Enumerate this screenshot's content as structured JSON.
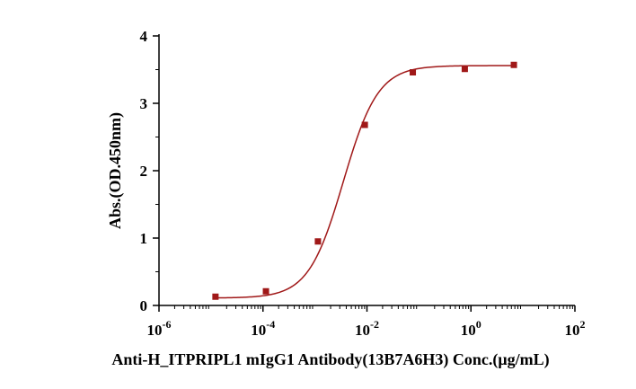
{
  "chart_data": {
    "type": "scatter",
    "title": "",
    "xlabel": "Anti-H_ITPRIPL1 mIgG1 Antibody(13B7A6H3)  Conc.(μg/mL)",
    "ylabel": "Abs.(OD.450nm)",
    "x_scale": "log",
    "xlim": [
      1e-06,
      100
    ],
    "ylim": [
      0,
      4
    ],
    "x_ticks": [
      {
        "base": "10",
        "exp": "-6"
      },
      {
        "base": "10",
        "exp": "-4"
      },
      {
        "base": "10",
        "exp": "-2"
      },
      {
        "base": "10",
        "exp": "0"
      },
      {
        "base": "10",
        "exp": "2"
      }
    ],
    "y_ticks": [
      "0",
      "1",
      "2",
      "3",
      "4"
    ],
    "grid": false,
    "legend": "none",
    "series": [
      {
        "marker": "square",
        "color": "#a01818",
        "x": [
          1.22e-05,
          0.000114,
          0.00114,
          0.0091,
          0.0762,
          0.762,
          6.7
        ],
        "y": [
          0.13,
          0.21,
          0.95,
          2.68,
          3.46,
          3.51,
          3.57
        ]
      }
    ],
    "fit": {
      "type": "4PL",
      "color": "#a01818",
      "bottom": 0.11,
      "top": 3.56,
      "ec50": 0.0035,
      "hill": 1.3
    }
  }
}
